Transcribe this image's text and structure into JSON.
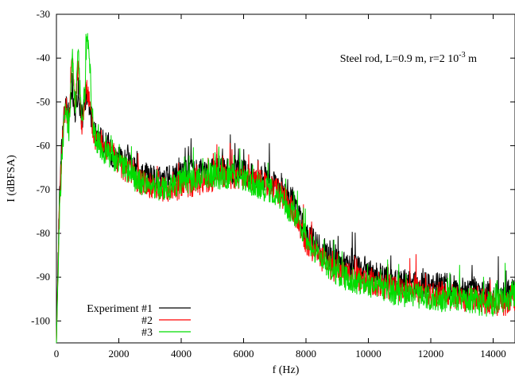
{
  "chart_data": {
    "type": "line",
    "title": "",
    "xlabel": "f (Hz)",
    "ylabel": "I (dBFSA)",
    "xlim": [
      0,
      14700
    ],
    "ylim": [
      -105,
      -30
    ],
    "xticks": [
      0,
      2000,
      4000,
      6000,
      8000,
      10000,
      12000,
      14000
    ],
    "yticks": [
      -30,
      -40,
      -50,
      -60,
      -70,
      -80,
      -90,
      -100
    ],
    "grid": false,
    "legend_position": "bottom-left",
    "annotation": {
      "text": "Steel rod, L=0.9 m, r=2 10",
      "sup": "-3",
      "suffix": " m"
    },
    "series": [
      {
        "name": "Experiment #1",
        "color": "#000000",
        "x": [
          0,
          100,
          200,
          300,
          400,
          500,
          600,
          700,
          800,
          900,
          1000,
          1200,
          1400,
          1600,
          1800,
          2000,
          2300,
          2600,
          3000,
          3400,
          3800,
          4000,
          4400,
          4800,
          5200,
          5600,
          6000,
          6400,
          6800,
          7200,
          7600,
          8000,
          8400,
          8800,
          9200,
          9600,
          10000,
          10500,
          11000,
          11500,
          12000,
          12500,
          13000,
          13500,
          14000,
          14400,
          14700
        ],
        "values": [
          -105,
          -70,
          -56,
          -50,
          -55,
          -46,
          -52,
          -47,
          -55,
          -50,
          -48,
          -57,
          -58,
          -60,
          -62,
          -63,
          -64,
          -66,
          -67,
          -68,
          -67,
          -66,
          -66,
          -66,
          -65,
          -66,
          -66,
          -67,
          -68,
          -70,
          -73,
          -80,
          -83,
          -86,
          -87,
          -88,
          -89,
          -90,
          -91,
          -91,
          -92,
          -92,
          -93,
          -93,
          -94,
          -94,
          -93
        ]
      },
      {
        "name": "#2",
        "color": "#ff0000",
        "x": [
          0,
          100,
          200,
          300,
          400,
          500,
          600,
          700,
          800,
          900,
          1000,
          1200,
          1400,
          1600,
          1800,
          2000,
          2300,
          2600,
          3000,
          3400,
          3800,
          4000,
          4400,
          4800,
          5200,
          5600,
          6000,
          6400,
          6800,
          7200,
          7600,
          8000,
          8400,
          8800,
          9200,
          9600,
          10000,
          10500,
          11000,
          11500,
          12000,
          12500,
          13000,
          13500,
          14000,
          14400,
          14700
        ],
        "values": [
          -105,
          -72,
          -58,
          -50,
          -56,
          -37,
          -52,
          -40,
          -56,
          -50,
          -47,
          -58,
          -59,
          -61,
          -62,
          -64,
          -66,
          -68,
          -69,
          -70,
          -70,
          -69,
          -69,
          -68,
          -67,
          -67,
          -67,
          -68,
          -69,
          -71,
          -75,
          -82,
          -85,
          -88,
          -89,
          -90,
          -91,
          -92,
          -93,
          -93,
          -94,
          -94,
          -95,
          -95,
          -96,
          -96,
          -95
        ]
      },
      {
        "name": "#3",
        "color": "#00dd00",
        "x": [
          0,
          100,
          200,
          300,
          400,
          500,
          600,
          700,
          800,
          900,
          1000,
          1200,
          1400,
          1600,
          1800,
          2000,
          2300,
          2600,
          3000,
          3400,
          3800,
          4000,
          4400,
          4800,
          5200,
          5600,
          6000,
          6400,
          6800,
          7200,
          7600,
          8000,
          8400,
          8800,
          9200,
          9600,
          10000,
          10500,
          11000,
          11500,
          12000,
          12500,
          13000,
          13500,
          14000,
          14400,
          14700
        ],
        "values": [
          -105,
          -75,
          -59,
          -51,
          -57,
          -38,
          -53,
          -39,
          -55,
          -49,
          -34,
          -58,
          -60,
          -62,
          -63,
          -64,
          -66,
          -68,
          -69,
          -70,
          -69,
          -68,
          -68,
          -67,
          -67,
          -67,
          -68,
          -69,
          -70,
          -72,
          -76,
          -81,
          -85,
          -88,
          -90,
          -91,
          -92,
          -93,
          -94,
          -94,
          -95,
          -95,
          -95,
          -96,
          -96,
          -95,
          -94
        ]
      }
    ]
  }
}
